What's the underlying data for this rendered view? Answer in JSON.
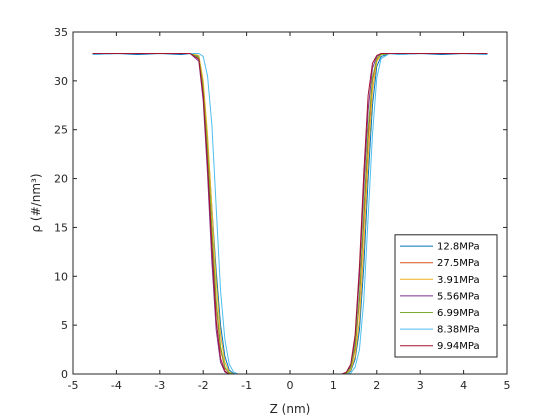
{
  "chart_data": {
    "type": "line",
    "xlabel": "Z (nm)",
    "ylabel": "ρ (#/nm³)",
    "xlim": [
      -5,
      5
    ],
    "ylim": [
      0,
      35
    ],
    "xticks": [
      -5,
      -4,
      -3,
      -2,
      -1,
      0,
      1,
      2,
      3,
      4,
      5
    ],
    "yticks": [
      0,
      5,
      10,
      15,
      20,
      25,
      30,
      35
    ],
    "grid": false,
    "legend_position": "bottom-right",
    "series": [
      {
        "name": "12.8MPa",
        "color": "#0072BD",
        "x": [
          -4.55,
          -4.0,
          -3.5,
          -3.0,
          -2.5,
          -2.3,
          -2.1,
          -2.0,
          -1.9,
          -1.8,
          -1.7,
          -1.6,
          -1.5,
          -1.4,
          -1.3,
          -1.2,
          -1.0,
          0,
          1.0,
          1.2,
          1.3,
          1.4,
          1.5,
          1.6,
          1.7,
          1.8,
          1.9,
          2.0,
          2.1,
          2.3,
          2.5,
          3.0,
          3.5,
          4.0,
          4.55
        ],
        "y": [
          32.7,
          32.8,
          32.7,
          32.8,
          32.7,
          32.8,
          32.5,
          29.5,
          24.0,
          17.0,
          10.5,
          5.0,
          1.8,
          0.4,
          0.05,
          0,
          0,
          0,
          0,
          0,
          0.05,
          0.3,
          1.5,
          4.5,
          11.0,
          20.0,
          27.5,
          31.5,
          32.5,
          32.8,
          32.7,
          32.8,
          32.7,
          32.8,
          32.7
        ]
      },
      {
        "name": "27.5MPa",
        "color": "#D95319",
        "x": [
          -4.55,
          -4.0,
          -3.5,
          -3.0,
          -2.5,
          -2.3,
          -2.1,
          -2.0,
          -1.9,
          -1.8,
          -1.7,
          -1.6,
          -1.5,
          -1.4,
          -1.3,
          -1.2,
          -1.0,
          0,
          1.0,
          1.2,
          1.3,
          1.4,
          1.5,
          1.6,
          1.7,
          1.8,
          1.9,
          2.0,
          2.1,
          2.3,
          2.5,
          3.0,
          3.5,
          4.0,
          4.55
        ],
        "y": [
          32.8,
          32.8,
          32.8,
          32.8,
          32.8,
          32.8,
          32.3,
          29.0,
          22.5,
          14.5,
          7.0,
          2.5,
          0.6,
          0.1,
          0,
          0,
          0,
          0,
          0,
          0,
          0.1,
          0.6,
          2.5,
          7.5,
          15.5,
          24.0,
          30.0,
          32.2,
          32.7,
          32.8,
          32.8,
          32.8,
          32.8,
          32.8,
          32.8
        ]
      },
      {
        "name": "3.91MPa",
        "color": "#EDB120",
        "x": [
          -4.55,
          -4.0,
          -3.5,
          -3.0,
          -2.5,
          -2.3,
          -2.1,
          -2.0,
          -1.9,
          -1.8,
          -1.7,
          -1.6,
          -1.5,
          -1.4,
          -1.3,
          -1.2,
          -1.0,
          0,
          1.0,
          1.2,
          1.3,
          1.4,
          1.5,
          1.6,
          1.7,
          1.8,
          1.9,
          2.0,
          2.1,
          2.3,
          2.5,
          3.0,
          3.5,
          4.0,
          4.55
        ],
        "y": [
          32.8,
          32.8,
          32.8,
          32.8,
          32.8,
          32.8,
          32.6,
          30.0,
          24.5,
          17.0,
          9.5,
          4.0,
          1.2,
          0.2,
          0,
          0,
          0,
          0,
          0,
          0,
          0.05,
          0.4,
          1.8,
          5.5,
          13.0,
          22.0,
          29.0,
          32.0,
          32.7,
          32.8,
          32.8,
          32.8,
          32.8,
          32.8,
          32.8
        ]
      },
      {
        "name": "5.56MPa",
        "color": "#7E2F8E",
        "x": [
          -4.55,
          -4.0,
          -3.5,
          -3.0,
          -2.5,
          -2.3,
          -2.1,
          -2.0,
          -1.9,
          -1.8,
          -1.7,
          -1.6,
          -1.5,
          -1.4,
          -1.3,
          -1.2,
          -1.0,
          0,
          1.0,
          1.2,
          1.3,
          1.4,
          1.5,
          1.6,
          1.7,
          1.8,
          1.9,
          2.0,
          2.1,
          2.3,
          2.5,
          3.0,
          3.5,
          4.0,
          4.55
        ],
        "y": [
          32.8,
          32.8,
          32.8,
          32.8,
          32.8,
          32.8,
          32.0,
          28.0,
          20.5,
          11.5,
          4.5,
          1.2,
          0.2,
          0,
          0,
          0,
          0,
          0,
          0,
          0,
          0.1,
          0.8,
          3.5,
          10.0,
          19.0,
          27.0,
          31.3,
          32.5,
          32.8,
          32.8,
          32.8,
          32.8,
          32.8,
          32.8,
          32.8
        ]
      },
      {
        "name": "6.99MPa",
        "color": "#77AC30",
        "x": [
          -4.55,
          -4.0,
          -3.5,
          -3.0,
          -2.5,
          -2.3,
          -2.1,
          -2.0,
          -1.9,
          -1.8,
          -1.7,
          -1.6,
          -1.5,
          -1.4,
          -1.3,
          -1.2,
          -1.0,
          0,
          1.0,
          1.2,
          1.3,
          1.4,
          1.5,
          1.6,
          1.7,
          1.8,
          1.9,
          2.0,
          2.1,
          2.3,
          2.5,
          3.0,
          3.5,
          4.0,
          4.55
        ],
        "y": [
          32.8,
          32.8,
          32.8,
          32.8,
          32.8,
          32.8,
          32.4,
          29.2,
          23.0,
          15.0,
          7.5,
          2.8,
          0.7,
          0.1,
          0,
          0,
          0,
          0,
          0,
          0,
          0.1,
          0.6,
          2.8,
          8.0,
          16.5,
          25.0,
          30.3,
          32.3,
          32.7,
          32.8,
          32.8,
          32.8,
          32.8,
          32.8,
          32.8
        ]
      },
      {
        "name": "8.38MPa",
        "color": "#4DBEEE",
        "x": [
          -4.55,
          -4.0,
          -3.5,
          -3.0,
          -2.5,
          -2.3,
          -2.1,
          -2.0,
          -1.9,
          -1.8,
          -1.7,
          -1.6,
          -1.5,
          -1.4,
          -1.3,
          -1.2,
          -1.0,
          0,
          1.0,
          1.2,
          1.3,
          1.4,
          1.5,
          1.6,
          1.7,
          1.8,
          1.9,
          2.0,
          2.1,
          2.3,
          2.5,
          3.0,
          3.5,
          4.0,
          4.55
        ],
        "y": [
          32.7,
          32.8,
          32.8,
          32.8,
          32.8,
          32.8,
          32.8,
          32.5,
          30.5,
          25.5,
          17.0,
          8.5,
          3.5,
          1.0,
          0.2,
          0,
          0,
          0,
          0,
          0,
          0,
          0.1,
          0.7,
          2.5,
          7.5,
          16.0,
          24.5,
          30.3,
          32.3,
          32.8,
          32.7,
          32.8,
          32.8,
          32.8,
          32.7
        ]
      },
      {
        "name": "9.94MPa",
        "color": "#A2142F",
        "x": [
          -4.55,
          -4.0,
          -3.5,
          -3.0,
          -2.5,
          -2.3,
          -2.1,
          -2.0,
          -1.9,
          -1.8,
          -1.7,
          -1.6,
          -1.5,
          -1.4,
          -1.3,
          -1.2,
          -1.0,
          0,
          1.0,
          1.2,
          1.3,
          1.4,
          1.5,
          1.6,
          1.7,
          1.8,
          1.9,
          2.0,
          2.1,
          2.3,
          2.5,
          3.0,
          3.5,
          4.0,
          4.55
        ],
        "y": [
          32.8,
          32.8,
          32.8,
          32.8,
          32.8,
          32.8,
          32.2,
          28.5,
          21.5,
          13.0,
          5.5,
          1.6,
          0.3,
          0,
          0,
          0,
          0,
          0,
          0,
          0,
          0.2,
          1.0,
          4.0,
          11.0,
          20.5,
          28.5,
          31.8,
          32.6,
          32.8,
          32.8,
          32.8,
          32.8,
          32.8,
          32.8,
          32.8
        ]
      }
    ]
  }
}
